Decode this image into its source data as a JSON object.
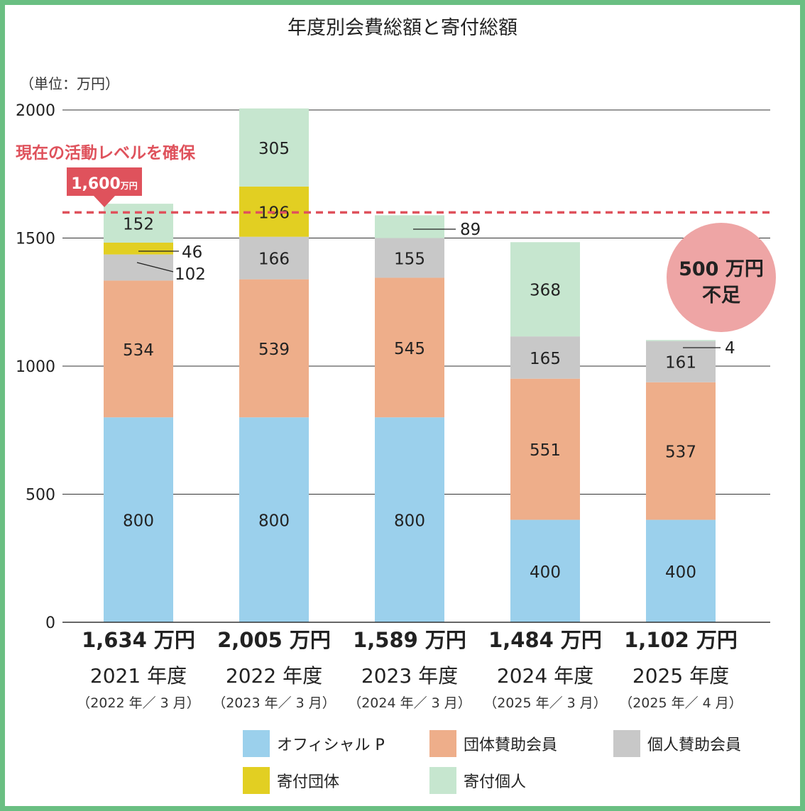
{
  "chart_data": {
    "type": "bar",
    "stacked": true,
    "title": "年度別会費総額と寄付総額",
    "unit_label": "（単位：万円）",
    "ylim": [
      0,
      2000
    ],
    "yticks": [
      0,
      500,
      1000,
      1500,
      2000
    ],
    "categories": [
      "2021 年度",
      "2022 年度",
      "2023 年度",
      "2024 年度",
      "2025 年度"
    ],
    "sub_categories": [
      "（2022 年／ 3 月）",
      "（2023 年／ 3 月）",
      "（2024 年／ 3 月）",
      "（2025 年／ 3 月）",
      "（2025 年／ 4 月）"
    ],
    "totals": [
      "1,634 万円",
      "2,005 万円",
      "1,589 万円",
      "1,484 万円",
      "1,102 万円"
    ],
    "series": [
      {
        "name": "オフィシャル P",
        "color": "#9bd0ec",
        "values": [
          800,
          800,
          800,
          400,
          400
        ]
      },
      {
        "name": "団体賛助会員",
        "color": "#eeae8a",
        "values": [
          534,
          539,
          545,
          551,
          537
        ]
      },
      {
        "name": "個人賛助会員",
        "color": "#c8c8c8",
        "values": [
          102,
          166,
          155,
          165,
          161
        ]
      },
      {
        "name": "寄付団体",
        "color": "#e2cf22",
        "values": [
          46,
          196,
          0,
          0,
          0
        ]
      },
      {
        "name": "寄付個人",
        "color": "#c6e6cf",
        "values": [
          152,
          305,
          89,
          368,
          4
        ]
      }
    ],
    "target": {
      "value": 1600,
      "label": "現在の活動レベルを確保",
      "badge_amount": "1,600",
      "badge_unit": "万円",
      "color": "#df525c"
    },
    "shortfall": {
      "line1": "500 万円",
      "line2": "不足",
      "color": "#eea5a5"
    },
    "grid": true,
    "legend_position": "bottom"
  }
}
